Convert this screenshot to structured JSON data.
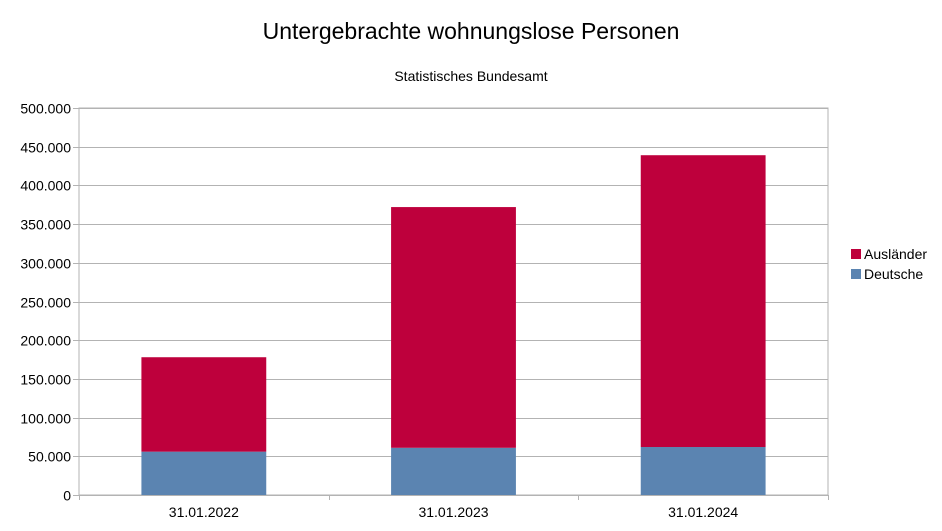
{
  "chart_data": {
    "type": "bar",
    "stacked": true,
    "title": "Untergebrachte wohnungslose Personen",
    "subtitle": "Statistisches Bundesamt",
    "categories": [
      "31.01.2022",
      "31.01.2023",
      "31.01.2024"
    ],
    "series": [
      {
        "name": "Deutsche",
        "color": "#5b84b1",
        "values": [
          56000,
          61000,
          62000
        ]
      },
      {
        "name": "Ausländer",
        "color": "#be003c",
        "values": [
          122000,
          311000,
          377000
        ]
      }
    ],
    "ylim": [
      0,
      500000
    ],
    "yticks": [
      0,
      50000,
      100000,
      150000,
      200000,
      250000,
      300000,
      350000,
      400000,
      450000,
      500000
    ],
    "ytick_labels": [
      "0",
      "50.000",
      "100.000",
      "150.000",
      "200.000",
      "250.000",
      "300.000",
      "350.000",
      "400.000",
      "450.000",
      "500.000"
    ],
    "grid": true,
    "legend_position": "right",
    "legend_order": [
      "Ausländer",
      "Deutsche"
    ]
  }
}
